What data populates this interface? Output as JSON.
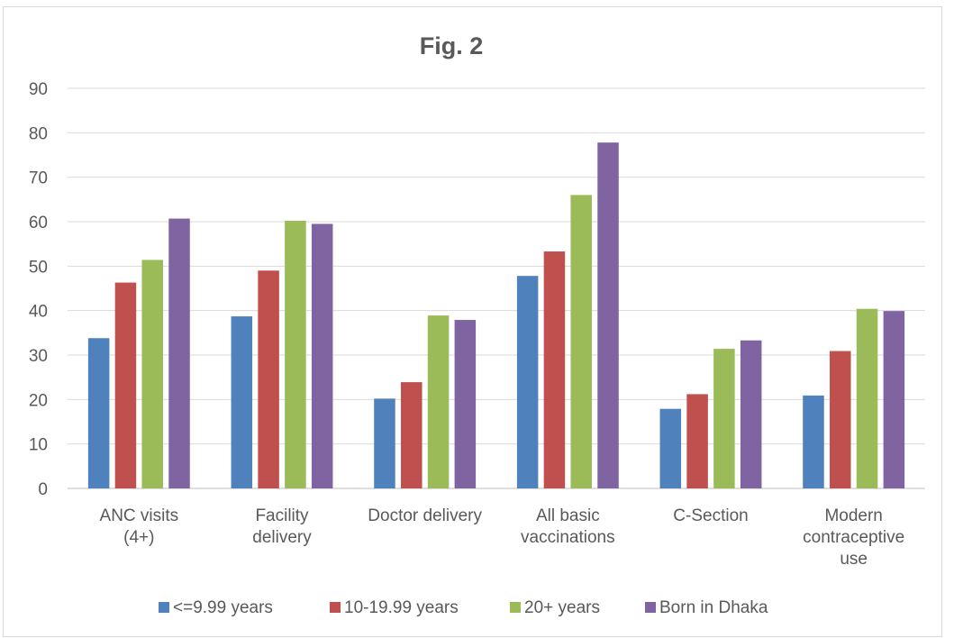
{
  "chart_data": {
    "type": "bar",
    "title": "Fig. 2",
    "categories": [
      [
        "ANC visits",
        "(4+)"
      ],
      [
        "Facility",
        "delivery"
      ],
      [
        "Doctor delivery"
      ],
      [
        "All basic",
        "vaccinations"
      ],
      [
        "C-Section"
      ],
      [
        "Modern",
        "contraceptive",
        "use"
      ]
    ],
    "series": [
      {
        "name": "<=9.99 years",
        "color": "#4f81bd",
        "values": [
          33.8,
          38.7,
          20.2,
          47.8,
          17.9,
          20.9
        ]
      },
      {
        "name": "10-19.99 years",
        "color": "#c0504d",
        "values": [
          46.3,
          49.0,
          23.9,
          53.3,
          21.2,
          30.9
        ]
      },
      {
        "name": "20+ years",
        "color": "#9bbb59",
        "values": [
          51.4,
          60.2,
          38.9,
          66.0,
          31.4,
          40.4
        ]
      },
      {
        "name": "Born in Dhaka",
        "color": "#8064a2",
        "values": [
          60.7,
          59.5,
          37.9,
          77.8,
          33.3,
          39.9
        ]
      }
    ],
    "ylim": [
      0,
      90
    ],
    "yticks": [
      0,
      10,
      20,
      30,
      40,
      50,
      60,
      70,
      80,
      90
    ],
    "xlabel": "",
    "ylabel": "",
    "grid": true,
    "legend": "bottom"
  }
}
